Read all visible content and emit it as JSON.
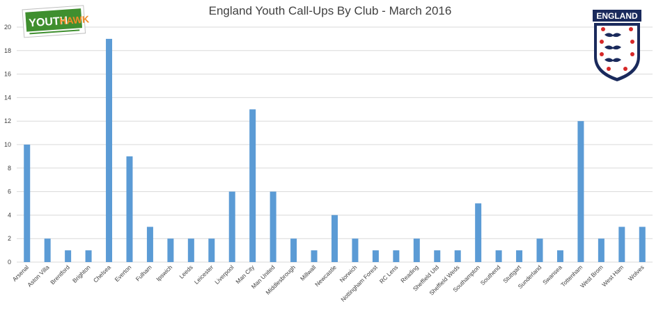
{
  "logos": {
    "left_text_a": "YOUTH",
    "left_text_b": "HAWK",
    "right_text": "ENGLAND"
  },
  "colors": {
    "bar": "#5b9bd5",
    "grid": "#d9d9d9",
    "text": "#404040"
  },
  "chart_data": {
    "type": "bar",
    "title": "England Youth Call-Ups By Club - March 2016",
    "xlabel": "",
    "ylabel": "",
    "ylim": [
      0,
      20
    ],
    "yticks": [
      0,
      2,
      4,
      6,
      8,
      10,
      12,
      14,
      16,
      18,
      20
    ],
    "grid": true,
    "legend": "none",
    "categories": [
      "Arsenal",
      "Aston Villa",
      "Brentford",
      "Brighton",
      "Chelsea",
      "Everton",
      "Fulham",
      "Ipswich",
      "Leeds",
      "Leicester",
      "Liverpool",
      "Man City",
      "Man United",
      "Middlesbrough",
      "Millwall",
      "Newcastle",
      "Norwich",
      "Nottingham Forest",
      "RC Lens",
      "Reading",
      "Sheffield Utd",
      "Sheffield Weds",
      "Southampton",
      "Southend",
      "Stuttgart",
      "Sunderland",
      "Swansea",
      "Tottenham",
      "West Brom",
      "West Ham",
      "Wolves"
    ],
    "values": [
      10,
      2,
      1,
      1,
      19,
      9,
      3,
      2,
      2,
      2,
      6,
      13,
      6,
      2,
      1,
      4,
      2,
      1,
      1,
      2,
      1,
      1,
      5,
      1,
      1,
      2,
      1,
      12,
      2,
      3,
      3
    ]
  }
}
